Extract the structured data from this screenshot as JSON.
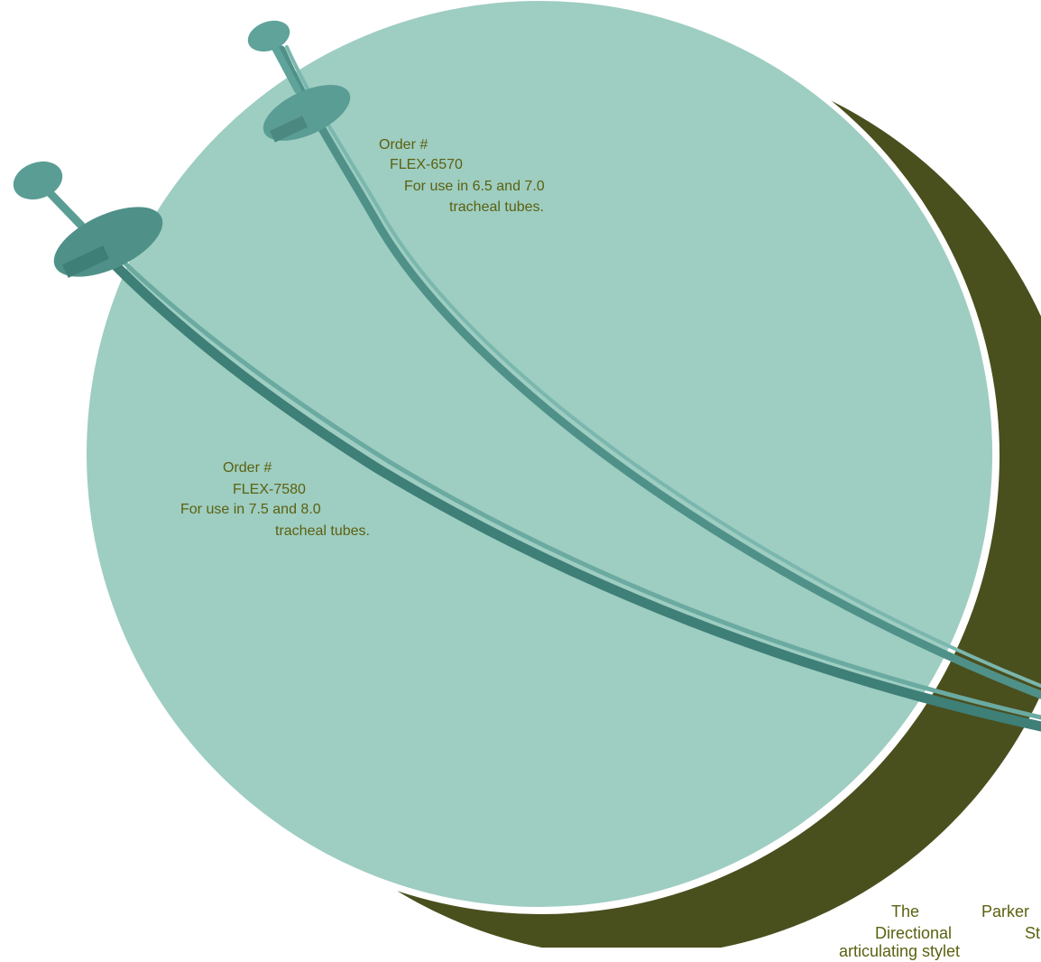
{
  "labels": {
    "flex6570": {
      "order": "Order #",
      "code": "FLEX-6570",
      "use": "For use in 6.5 and 7.0",
      "tubes": "tracheal tubes."
    },
    "flex7580": {
      "order": "Order #",
      "code": "FLEX-7580",
      "use": "For use in 7.5 and 8.0",
      "tubes": "tracheal tubes."
    }
  },
  "description": {
    "word1": "The",
    "word2": "Parker",
    "word3": "Directional",
    "word4": "St",
    "line3": "articulating stylet"
  },
  "colors": {
    "circle": "#9ecdc1",
    "crescent": "#4a4f1e",
    "text": "#5b6110",
    "stylet": "#5fa39a"
  }
}
